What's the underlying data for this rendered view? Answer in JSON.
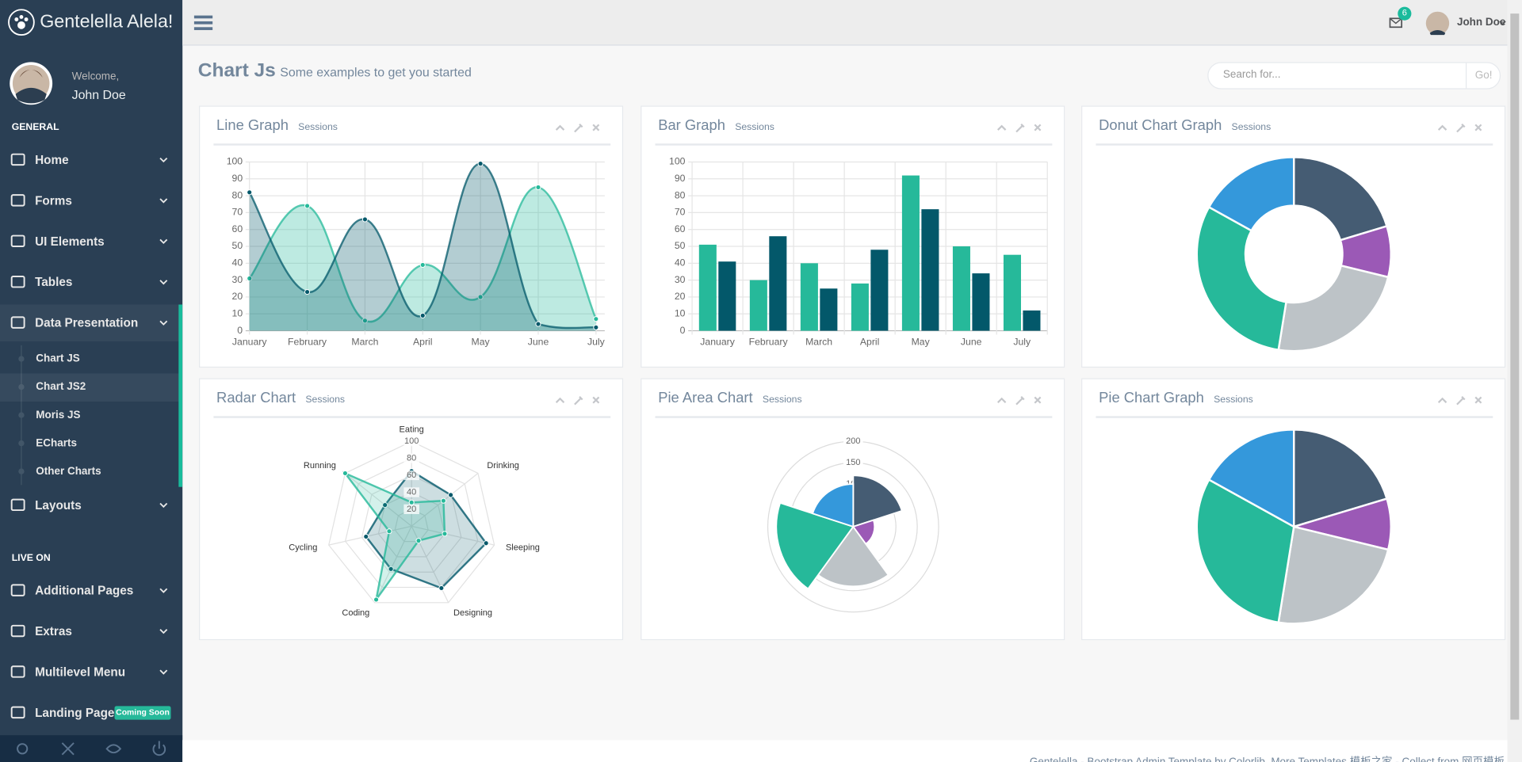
{
  "sidebar": {
    "brand": "Gentelella Alela!",
    "welcome": "Welcome,",
    "user": "John Doe",
    "sections": [
      {
        "title": "GENERAL",
        "items": [
          {
            "label": "Home"
          },
          {
            "label": "Forms"
          },
          {
            "label": "UI Elements"
          },
          {
            "label": "Tables"
          },
          {
            "label": "Data Presentation",
            "children": [
              "Chart JS",
              "Chart JS2",
              "Moris JS",
              "ECharts",
              "Other Charts"
            ]
          },
          {
            "label": "Layouts"
          }
        ]
      },
      {
        "title": "LIVE ON",
        "items": [
          {
            "label": "Additional Pages"
          },
          {
            "label": "Extras"
          },
          {
            "label": "Multilevel Menu"
          },
          {
            "label": "Landing Page",
            "badge": "Coming Soon"
          }
        ]
      }
    ]
  },
  "topbar": {
    "notifications": 6,
    "user": "John Doe"
  },
  "page": {
    "title": "Chart Js",
    "subtitle": "Some examples to get you started",
    "search_placeholder": "Search for...",
    "search_button": "Go!"
  },
  "chart_data": [
    {
      "type": "line",
      "title": "Line Graph",
      "subtitle": "Sessions",
      "categories": [
        "January",
        "February",
        "March",
        "April",
        "May",
        "June",
        "July"
      ],
      "series": [
        {
          "color": "#26B99A",
          "values": [
            31,
            74,
            6,
            39,
            20,
            85,
            7
          ]
        },
        {
          "color": "#03586A",
          "values": [
            82,
            23,
            66,
            9,
            99,
            4,
            2
          ]
        }
      ],
      "ylim": [
        0,
        100
      ],
      "yticks": [
        0,
        10,
        20,
        30,
        40,
        50,
        60,
        70,
        80,
        90,
        100
      ],
      "grid": true
    },
    {
      "type": "bar",
      "title": "Bar Graph",
      "subtitle": "Sessions",
      "categories": [
        "January",
        "February",
        "March",
        "April",
        "May",
        "June",
        "July"
      ],
      "series": [
        {
          "color": "#26B99A",
          "values": [
            51,
            30,
            40,
            28,
            92,
            50,
            45
          ]
        },
        {
          "color": "#03586A",
          "values": [
            41,
            56,
            25,
            48,
            72,
            34,
            12
          ]
        }
      ],
      "ylim": [
        0,
        100
      ],
      "yticks": [
        0,
        10,
        20,
        30,
        40,
        50,
        60,
        70,
        80,
        90,
        100
      ],
      "grid": true
    },
    {
      "type": "doughnut",
      "title": "Donut Chart Graph",
      "subtitle": "Sessions",
      "values": [
        120,
        50,
        140,
        180,
        100
      ],
      "colors": [
        "#455C73",
        "#9B59B6",
        "#BDC3C7",
        "#26B99A",
        "#3498DB"
      ]
    },
    {
      "type": "radar",
      "title": "Radar Chart",
      "subtitle": "Sessions",
      "categories": [
        "Eating",
        "Drinking",
        "Sleeping",
        "Designing",
        "Coding",
        "Cycling",
        "Running"
      ],
      "series": [
        {
          "color": "#03586A",
          "values": [
            65,
            59,
            90,
            81,
            56,
            55,
            40
          ]
        },
        {
          "color": "#26B99A",
          "values": [
            28,
            48,
            40,
            19,
            96,
            27,
            100
          ]
        }
      ],
      "ylim": [
        0,
        100
      ],
      "yticks": [
        20,
        40,
        60,
        80,
        100
      ]
    },
    {
      "type": "polar",
      "title": "Pie Area Chart",
      "subtitle": "Sessions",
      "values": [
        120,
        50,
        140,
        180,
        100
      ],
      "colors": [
        "#455C73",
        "#9B59B6",
        "#BDC3C7",
        "#26B99A",
        "#3498DB"
      ],
      "ylim": [
        0,
        200
      ],
      "yticks": [
        50,
        100,
        150,
        200
      ]
    },
    {
      "type": "pie",
      "title": "Pie Chart Graph",
      "subtitle": "Sessions",
      "values": [
        120,
        50,
        140,
        180,
        100
      ],
      "colors": [
        "#455C73",
        "#9B59B6",
        "#BDC3C7",
        "#26B99A",
        "#3498DB"
      ]
    }
  ],
  "footer": "Gentelella - Bootstrap Admin Template by Colorlib. More Templates 模板之家 - Collect from 网页模板"
}
